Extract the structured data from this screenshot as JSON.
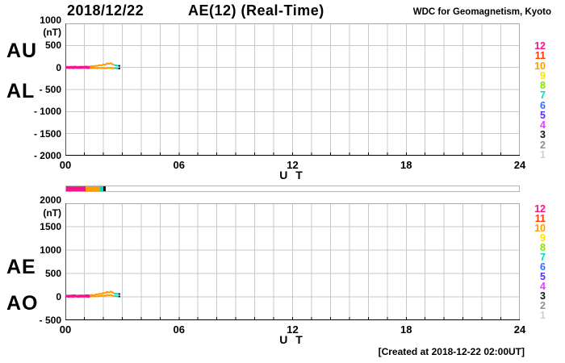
{
  "header": {
    "date": "2018/12/22",
    "title": "AE(12) (Real-Time)",
    "credit": "WDC for Geomagnetism, Kyoto"
  },
  "footer": {
    "created": "[Created at 2018-12-22 02:00UT]"
  },
  "stations": {
    "order": [
      "12",
      "11",
      "10",
      "9",
      "8",
      "7",
      "6",
      "5",
      "4",
      "3",
      "2",
      "1"
    ],
    "colors": {
      "12": "#f4148c",
      "11": "#ff3c00",
      "10": "#ff9c00",
      "9": "#ffe100",
      "8": "#8ae000",
      "7": "#00ddc4",
      "6": "#2e6fff",
      "5": "#5c2cf0",
      "4": "#e03cff",
      "3": "#141414",
      "2": "#8e8e8e",
      "1": "#cfcfcf"
    }
  },
  "availability_bar": {
    "segments": [
      {
        "stations": "12",
        "t0": 0.0,
        "t1": 1.02
      },
      {
        "stations": "10",
        "t0": 1.02,
        "t1": 1.79
      },
      {
        "stations": "7",
        "t0": 1.79,
        "t1": 1.98
      },
      {
        "stations": "3",
        "t0": 1.98,
        "t1": 2.1
      }
    ]
  },
  "chart_data": [
    {
      "type": "line",
      "title": "AU and AL indices",
      "left_labels": [
        "AU",
        "AL"
      ],
      "unit": "(nT)",
      "xlabel": "U T",
      "ylim": [
        -2000,
        1000
      ],
      "ytick_step": 500,
      "xlim": [
        0,
        24
      ],
      "minor_x_step_hours": 1,
      "grid": true,
      "yticks": [
        {
          "label": "1000",
          "v": 1000
        },
        {
          "label": "500",
          "v": 500
        },
        {
          "label": "0",
          "v": 0
        },
        {
          "label": "- 500",
          "v": -500
        },
        {
          "label": "- 1000",
          "v": -1000
        },
        {
          "label": "- 1500",
          "v": -1500
        },
        {
          "label": "- 2000",
          "v": -2000
        }
      ],
      "xticks": [
        {
          "label": "00",
          "t": 0
        },
        {
          "label": "06",
          "t": 6
        },
        {
          "label": "12",
          "t": 12
        },
        {
          "label": "18",
          "t": 18
        },
        {
          "label": "24",
          "t": 24
        }
      ],
      "color_segments": [
        {
          "stations": "12",
          "t0": 0.0,
          "t1": 1.32
        },
        {
          "stations": "10",
          "t0": 1.32,
          "t1": 2.6
        },
        {
          "stations": "7",
          "t0": 2.6,
          "t1": 2.82
        },
        {
          "stations": "3",
          "t0": 2.82,
          "t1": 2.9
        }
      ],
      "series": [
        {
          "name": "AU",
          "points": [
            [
              0,
              12
            ],
            [
              0.1,
              18
            ],
            [
              0.2,
              10
            ],
            [
              0.3,
              20
            ],
            [
              0.4,
              14
            ],
            [
              0.5,
              22
            ],
            [
              0.6,
              16
            ],
            [
              0.7,
              12
            ],
            [
              0.8,
              20
            ],
            [
              0.9,
              15
            ],
            [
              1,
              18
            ],
            [
              1.1,
              24
            ],
            [
              1.2,
              16
            ],
            [
              1.3,
              20
            ],
            [
              1.4,
              30
            ],
            [
              1.5,
              25
            ],
            [
              1.6,
              40
            ],
            [
              1.7,
              35
            ],
            [
              1.8,
              55
            ],
            [
              1.9,
              45
            ],
            [
              2,
              70
            ],
            [
              2.1,
              60
            ],
            [
              2.2,
              95
            ],
            [
              2.3,
              80
            ],
            [
              2.4,
              100
            ],
            [
              2.5,
              70
            ],
            [
              2.6,
              55
            ],
            [
              2.7,
              45
            ],
            [
              2.8,
              40
            ],
            [
              2.9,
              35
            ]
          ]
        },
        {
          "name": "AL",
          "points": [
            [
              0,
              -12
            ],
            [
              0.1,
              -8
            ],
            [
              0.2,
              -15
            ],
            [
              0.3,
              -10
            ],
            [
              0.4,
              -18
            ],
            [
              0.5,
              -12
            ],
            [
              0.6,
              -8
            ],
            [
              0.7,
              -16
            ],
            [
              0.8,
              -10
            ],
            [
              0.9,
              -14
            ],
            [
              1,
              -8
            ],
            [
              1.1,
              -12
            ],
            [
              1.2,
              -18
            ],
            [
              1.3,
              -10
            ],
            [
              1.4,
              -15
            ],
            [
              1.5,
              -8
            ],
            [
              1.6,
              -12
            ],
            [
              1.7,
              -18
            ],
            [
              1.8,
              -10
            ],
            [
              1.9,
              -15
            ],
            [
              2,
              -12
            ],
            [
              2.1,
              -20
            ],
            [
              2.2,
              -14
            ],
            [
              2.3,
              -10
            ],
            [
              2.4,
              -16
            ],
            [
              2.5,
              -22
            ],
            [
              2.6,
              -14
            ],
            [
              2.7,
              -18
            ],
            [
              2.8,
              -25
            ],
            [
              2.9,
              -20
            ]
          ]
        }
      ]
    },
    {
      "type": "line",
      "title": "AE and AO indices",
      "left_labels": [
        "AE",
        "AO"
      ],
      "unit": "(nT)",
      "xlabel": "U T",
      "ylim": [
        -500,
        2000
      ],
      "ytick_step": 500,
      "xlim": [
        0,
        24
      ],
      "minor_x_step_hours": 1,
      "grid": true,
      "yticks": [
        {
          "label": "2000",
          "v": 2000
        },
        {
          "label": "1500",
          "v": 1500
        },
        {
          "label": "1000",
          "v": 1000
        },
        {
          "label": "500",
          "v": 500
        },
        {
          "label": "0",
          "v": 0
        },
        {
          "label": "- 500",
          "v": -500
        }
      ],
      "xticks": [
        {
          "label": "00",
          "t": 0
        },
        {
          "label": "06",
          "t": 6
        },
        {
          "label": "12",
          "t": 12
        },
        {
          "label": "18",
          "t": 18
        },
        {
          "label": "24",
          "t": 24
        }
      ],
      "color_segments": [
        {
          "stations": "12",
          "t0": 0.0,
          "t1": 1.32
        },
        {
          "stations": "10",
          "t0": 1.32,
          "t1": 2.6
        },
        {
          "stations": "7",
          "t0": 2.6,
          "t1": 2.82
        },
        {
          "stations": "3",
          "t0": 2.82,
          "t1": 2.9
        }
      ],
      "series": [
        {
          "name": "AE",
          "points": [
            [
              0,
              25
            ],
            [
              0.1,
              28
            ],
            [
              0.2,
              26
            ],
            [
              0.3,
              30
            ],
            [
              0.4,
              32
            ],
            [
              0.5,
              35
            ],
            [
              0.6,
              25
            ],
            [
              0.7,
              28
            ],
            [
              0.8,
              30
            ],
            [
              0.9,
              30
            ],
            [
              1,
              26
            ],
            [
              1.1,
              36
            ],
            [
              1.2,
              34
            ],
            [
              1.3,
              30
            ],
            [
              1.4,
              45
            ],
            [
              1.5,
              33
            ],
            [
              1.6,
              52
            ],
            [
              1.7,
              53
            ],
            [
              1.8,
              65
            ],
            [
              1.9,
              60
            ],
            [
              2,
              82
            ],
            [
              2.1,
              80
            ],
            [
              2.2,
              109
            ],
            [
              2.3,
              90
            ],
            [
              2.4,
              116
            ],
            [
              2.5,
              92
            ],
            [
              2.6,
              69
            ],
            [
              2.7,
              63
            ],
            [
              2.8,
              65
            ],
            [
              2.9,
              55
            ]
          ]
        },
        {
          "name": "AO",
          "points": [
            [
              0,
              0
            ],
            [
              0.1,
              5
            ],
            [
              0.2,
              -3
            ],
            [
              0.3,
              5
            ],
            [
              0.4,
              -2
            ],
            [
              0.5,
              5
            ],
            [
              0.6,
              4
            ],
            [
              0.7,
              -2
            ],
            [
              0.8,
              5
            ],
            [
              0.9,
              1
            ],
            [
              1,
              5
            ],
            [
              1.1,
              6
            ],
            [
              1.2,
              -1
            ],
            [
              1.3,
              5
            ],
            [
              1.4,
              8
            ],
            [
              1.5,
              9
            ],
            [
              1.6,
              14
            ],
            [
              1.7,
              9
            ],
            [
              1.8,
              23
            ],
            [
              1.9,
              15
            ],
            [
              2,
              29
            ],
            [
              2.1,
              20
            ],
            [
              2.2,
              41
            ],
            [
              2.3,
              35
            ],
            [
              2.4,
              42
            ],
            [
              2.5,
              24
            ],
            [
              2.6,
              21
            ],
            [
              2.7,
              14
            ],
            [
              2.8,
              8
            ],
            [
              2.9,
              8
            ]
          ]
        }
      ]
    }
  ]
}
